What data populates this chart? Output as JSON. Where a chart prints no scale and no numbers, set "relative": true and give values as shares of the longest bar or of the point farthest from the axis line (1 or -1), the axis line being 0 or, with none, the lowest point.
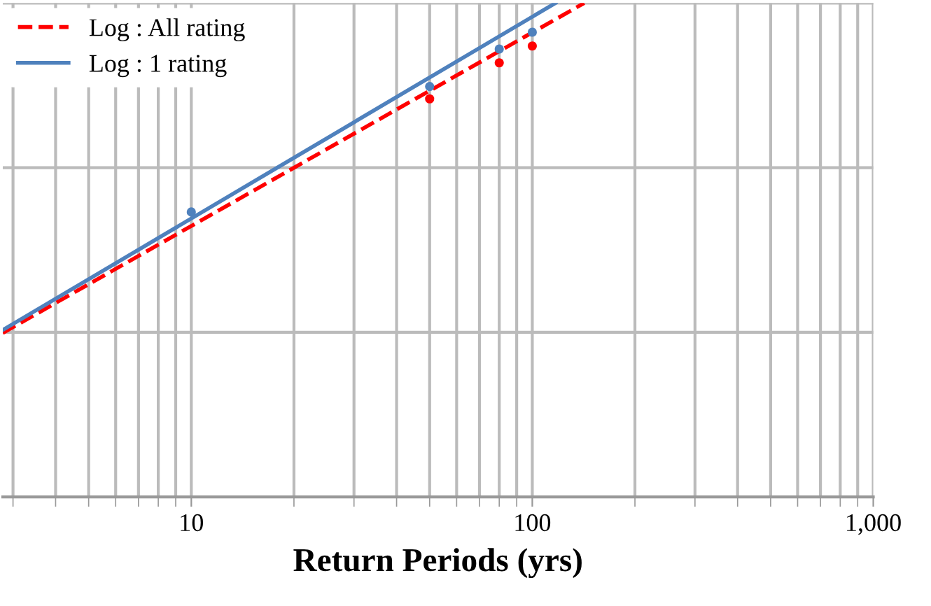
{
  "chart_data": {
    "type": "line",
    "relative": true,
    "xlabel": "Return Periods (yrs)",
    "log": "x",
    "xlim": [
      2.8,
      1000
    ],
    "xticks": [
      10,
      100,
      {
        "value": 1000,
        "label": "1,000"
      }
    ],
    "grid": true,
    "legend": "top left",
    "tick_labels": "x",
    "series": [
      {
        "name": "Log : All rating",
        "color": "#ff0000",
        "line_style": "dashed",
        "marker": "none",
        "x": [
          2.8,
          142
        ],
        "values": [
          0.332,
          1.0
        ]
      },
      {
        "name": "Log : 1 rating",
        "color": "#4f81bd",
        "line_style": "solid",
        "marker": "none",
        "x": [
          2.8,
          117
        ],
        "values": [
          0.338,
          1.0
        ]
      },
      {
        "type": "scatter",
        "color": "#4f81bd",
        "marker": "circle",
        "x": [
          10,
          50,
          80,
          100
        ],
        "values": [
          0.577,
          0.831,
          0.907,
          0.941
        ]
      },
      {
        "type": "scatter",
        "color": "#ff0000",
        "marker": "circle",
        "x": [
          50,
          80,
          100
        ],
        "values": [
          0.806,
          0.879,
          0.913
        ]
      }
    ]
  }
}
